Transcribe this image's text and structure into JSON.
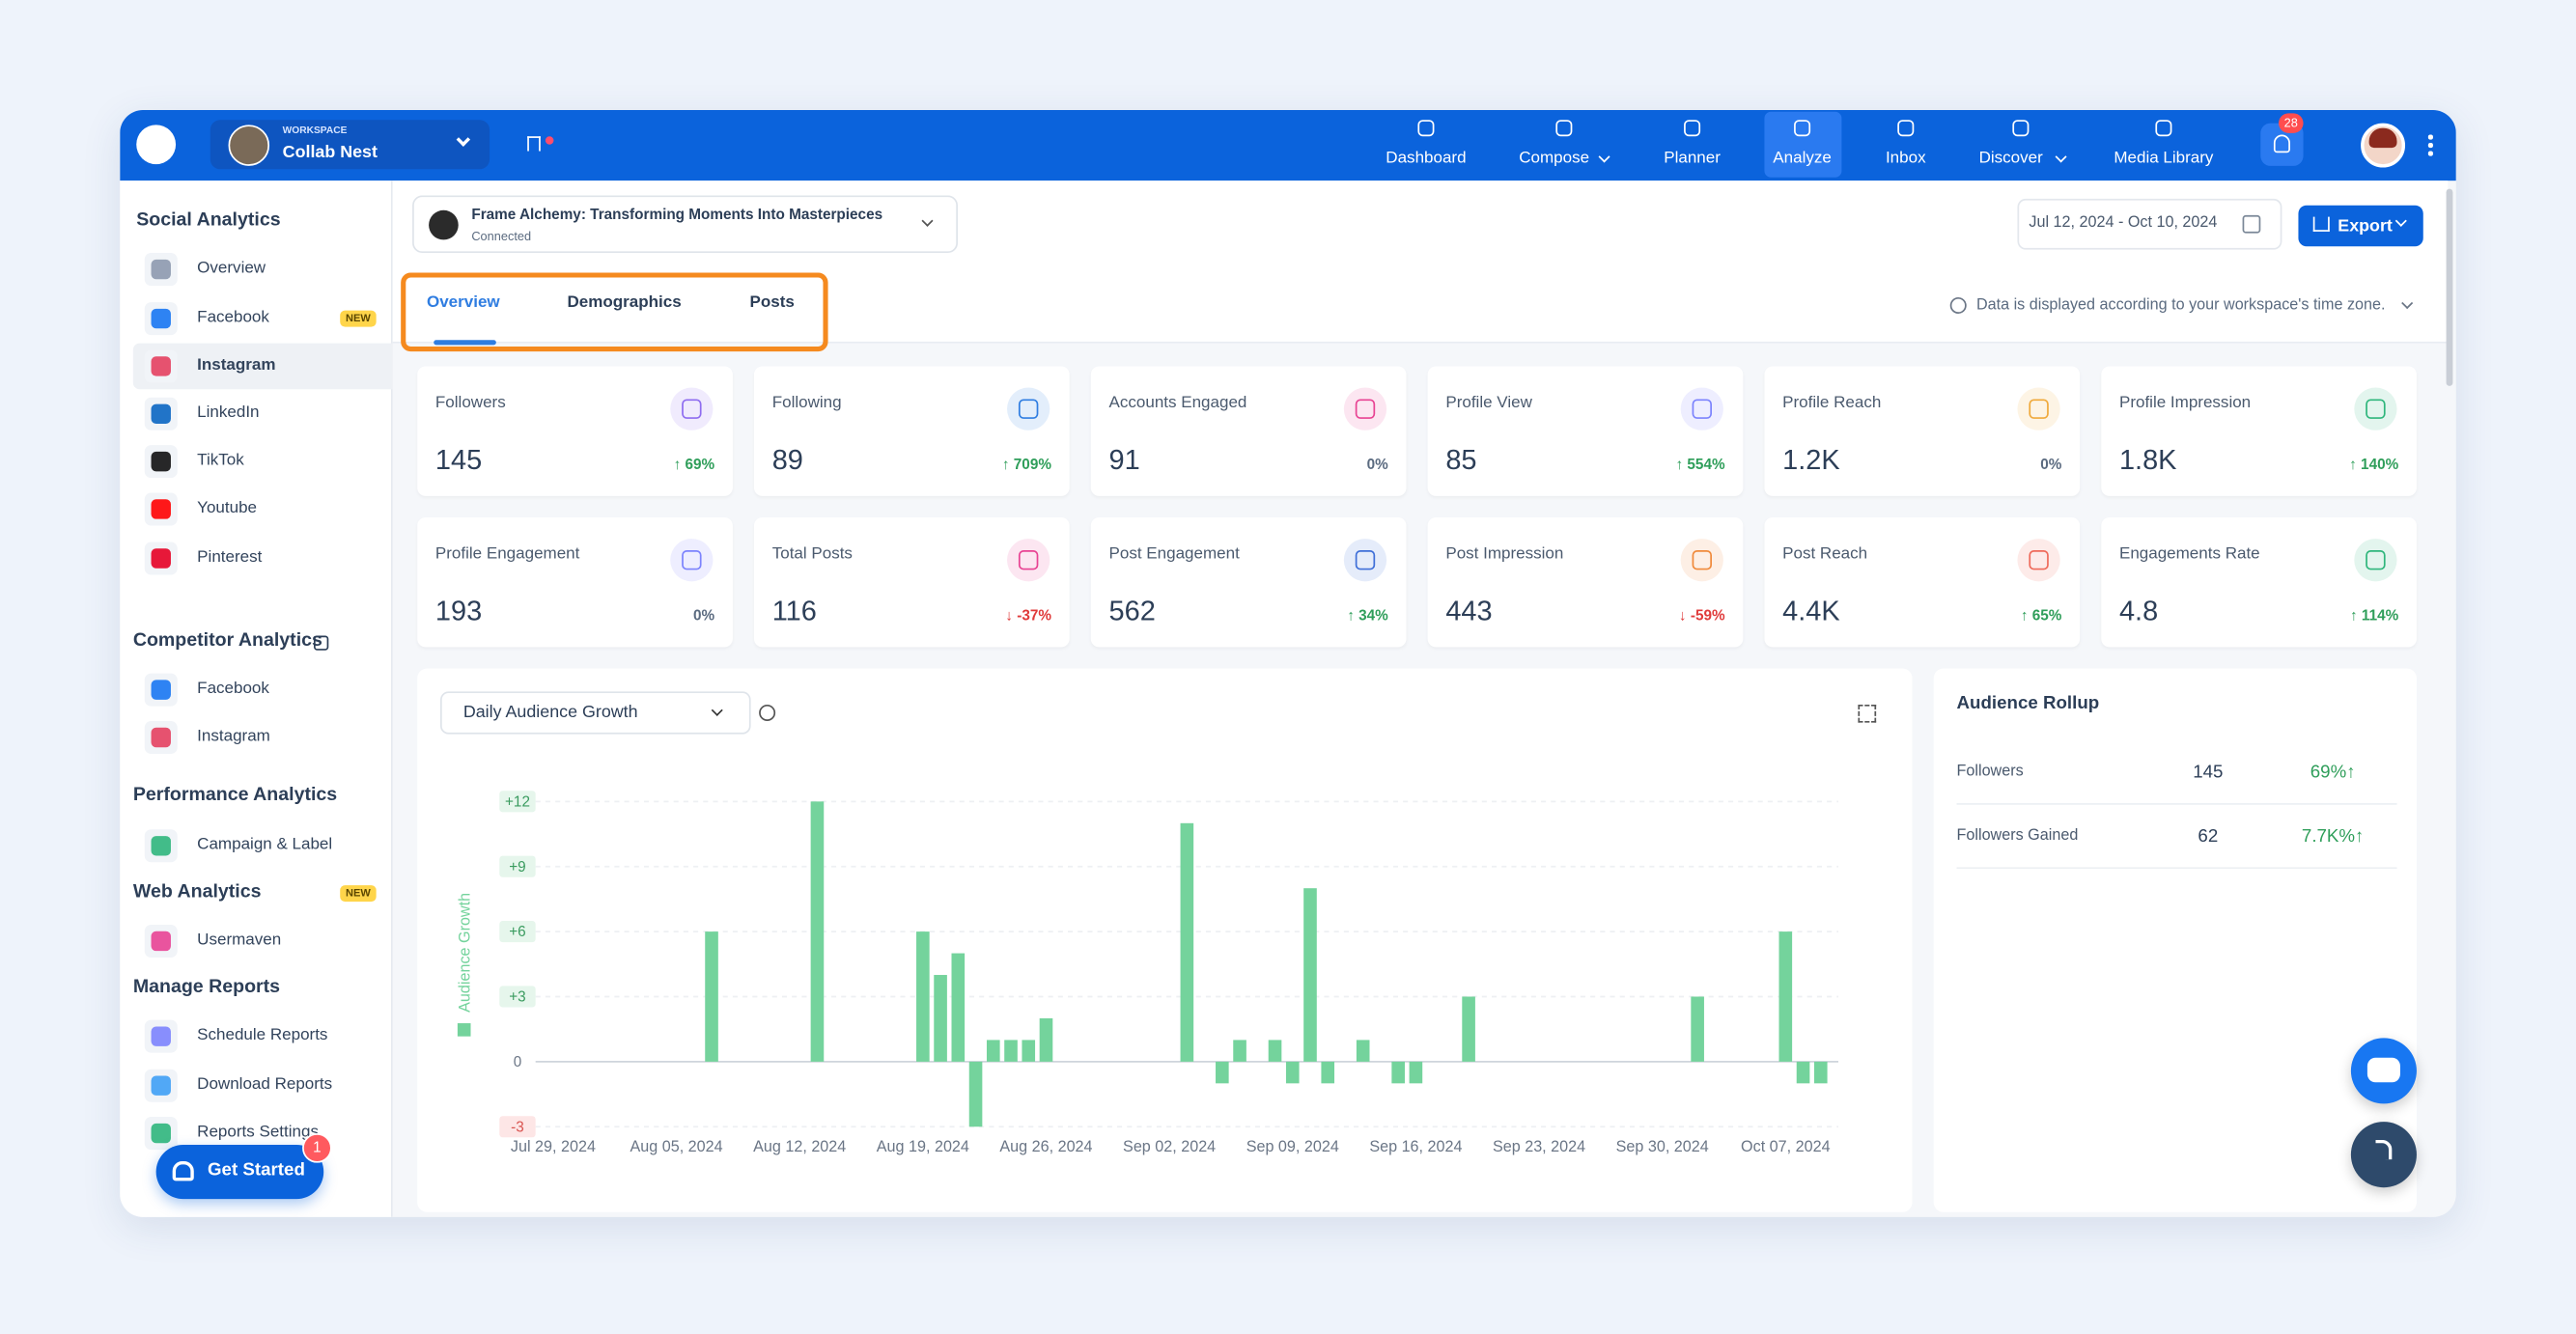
{
  "header": {
    "workspace_label": "WORKSPACE",
    "workspace_name": "Collab Nest",
    "nav": [
      "Dashboard",
      "Compose",
      "Planner",
      "Analyze",
      "Inbox",
      "Discover",
      "Media Library"
    ],
    "notification_count": 28
  },
  "sidebar": {
    "sections": [
      {
        "title": "Social Analytics",
        "items": [
          {
            "label": "Overview"
          },
          {
            "label": "Facebook",
            "badge": "NEW"
          },
          {
            "label": "Instagram"
          },
          {
            "label": "LinkedIn"
          },
          {
            "label": "TikTok"
          },
          {
            "label": "Youtube"
          },
          {
            "label": "Pinterest"
          }
        ]
      },
      {
        "title": "Competitor Analytics",
        "items": [
          {
            "label": "Facebook"
          },
          {
            "label": "Instagram"
          }
        ]
      },
      {
        "title": "Performance Analytics",
        "items": [
          {
            "label": "Campaign & Label"
          }
        ]
      },
      {
        "title": "Web Analytics",
        "badge": "NEW",
        "items": [
          {
            "label": "Usermaven"
          }
        ]
      },
      {
        "title": "Manage Reports",
        "items": [
          {
            "label": "Schedule Reports"
          },
          {
            "label": "Download Reports"
          },
          {
            "label": "Reports Settings"
          }
        ]
      }
    ],
    "get_started": "Get Started",
    "get_started_badge": 1
  },
  "toolbar": {
    "account_name": "Frame Alchemy: Transforming Moments Into Masterpieces",
    "account_status": "Connected",
    "date_range": "Jul 12, 2024 - Oct 10, 2024",
    "export": "Export"
  },
  "tabs": [
    "Overview",
    "Demographics",
    "Posts"
  ],
  "timezone_note": "Data is displayed according to your workspace's time zone.",
  "metrics": [
    {
      "label": "Followers",
      "value": 145,
      "change": "↑ 69%"
    },
    {
      "label": "Following",
      "value": 89,
      "change": "↑ 709%"
    },
    {
      "label": "Accounts Engaged",
      "value": 91,
      "change": "0%"
    },
    {
      "label": "Profile View",
      "value": 85,
      "change": "↑ 554%"
    },
    {
      "label": "Profile Reach",
      "value": "1.2K",
      "change": "0%"
    },
    {
      "label": "Profile Impression",
      "value": "1.8K",
      "change": "↑ 140%"
    },
    {
      "label": "Profile Engagement",
      "value": 193,
      "change": "0%"
    },
    {
      "label": "Total Posts",
      "value": 116,
      "change": "↓ -37%"
    },
    {
      "label": "Post Engagement",
      "value": 562,
      "change": "↑ 34%"
    },
    {
      "label": "Post Impression",
      "value": 443,
      "change": "↓ -59%"
    },
    {
      "label": "Post Reach",
      "value": "4.4K",
      "change": "↑ 65%"
    },
    {
      "label": "Engagements Rate",
      "value": 4.8,
      "change": "↑ 114%"
    }
  ],
  "chart_data": {
    "type": "bar",
    "title": "Daily Audience Growth",
    "y_label": "Audience Growth",
    "color": "#74d39c",
    "x": [
      "2024-08-07",
      "2024-08-13",
      "2024-08-19",
      "2024-08-20",
      "2024-08-21",
      "2024-08-22",
      "2024-08-23",
      "2024-08-24",
      "2024-08-25",
      "2024-08-26",
      "2024-09-03",
      "2024-09-05",
      "2024-09-06",
      "2024-09-08",
      "2024-09-09",
      "2024-09-10",
      "2024-09-11",
      "2024-09-13",
      "2024-09-15",
      "2024-09-16",
      "2024-09-19",
      "2024-10-02",
      "2024-10-07",
      "2024-10-08",
      "2024-10-09"
    ],
    "values": [
      6,
      12,
      6,
      4,
      5,
      -3,
      1,
      1,
      1,
      2,
      11,
      -1,
      1,
      1,
      -1,
      8,
      -1,
      1,
      -1,
      -1,
      3,
      3,
      6,
      -1,
      -1
    ],
    "xlim": [
      "2024-07-28",
      "2024-10-10"
    ],
    "xticks": [
      {
        "value": "2024-07-29",
        "label": "Jul 29, 2024"
      },
      {
        "value": "2024-08-05",
        "label": "Aug 05, 2024"
      },
      {
        "value": "2024-08-12",
        "label": "Aug 12, 2024"
      },
      {
        "value": "2024-08-19",
        "label": "Aug 19, 2024"
      },
      {
        "value": "2024-08-26",
        "label": "Aug 26, 2024"
      },
      {
        "value": "2024-09-02",
        "label": "Sep 02, 2024"
      },
      {
        "value": "2024-09-09",
        "label": "Sep 09, 2024"
      },
      {
        "value": "2024-09-16",
        "label": "Sep 16, 2024"
      },
      {
        "value": "2024-09-23",
        "label": "Sep 23, 2024"
      },
      {
        "value": "2024-09-30",
        "label": "Sep 30, 2024"
      },
      {
        "value": "2024-10-07",
        "label": "Oct 07, 2024"
      }
    ],
    "ylim": [
      -3,
      12
    ],
    "yticks": [
      -3,
      0,
      {
        "value": 3,
        "label": "+3"
      },
      {
        "value": 6,
        "label": "+6"
      },
      {
        "value": 9,
        "label": "+9"
      },
      {
        "value": 12,
        "label": "+12"
      }
    ],
    "grid": true
  },
  "rollup": {
    "title": "Audience Rollup",
    "rows": [
      {
        "label": "Followers",
        "value": 145,
        "change": "69%↑"
      },
      {
        "label": "Followers Gained",
        "value": 62,
        "change": "7.7K%↑"
      }
    ]
  }
}
